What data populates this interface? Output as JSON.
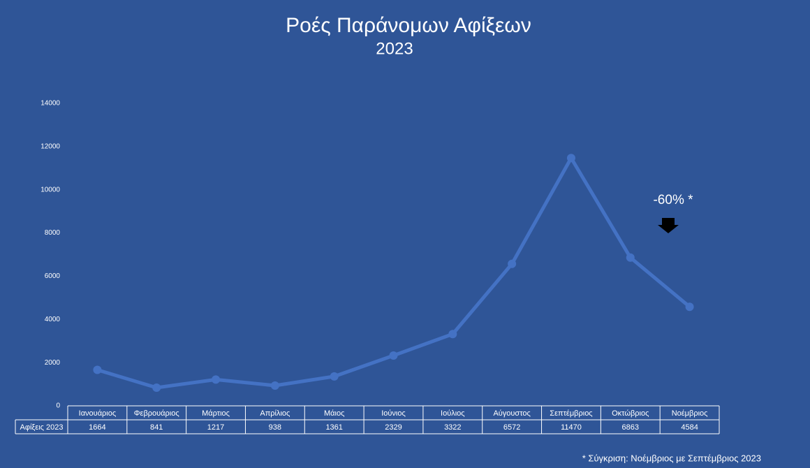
{
  "chart_data": {
    "type": "line",
    "title": "Ροές Παράνομων Αφίξεων",
    "subtitle": "2023",
    "categories": [
      "Ιανουάριος",
      "Φεβρουάριος",
      "Μάρτιος",
      "Απρίλιος",
      "Μάιος",
      "Ιούνιος",
      "Ιούλιος",
      "Αύγουστος",
      "Σεπτέμβριος",
      "Οκτώβριος",
      "Νοέμβριος"
    ],
    "series": [
      {
        "name": "Αφίξεις 2023",
        "color": "#4472c4",
        "values": [
          1664,
          841,
          1217,
          938,
          1361,
          2329,
          3322,
          6572,
          11470,
          6863,
          4584
        ]
      }
    ],
    "ylim": [
      0,
      14000
    ],
    "yticks": [
      0,
      2000,
      4000,
      6000,
      8000,
      10000,
      12000,
      14000
    ],
    "grid": false,
    "annotation": "-60% *",
    "footnote": "* Σύγκριση: Νοέμβριος με Σεπτέμβριος 2023"
  }
}
